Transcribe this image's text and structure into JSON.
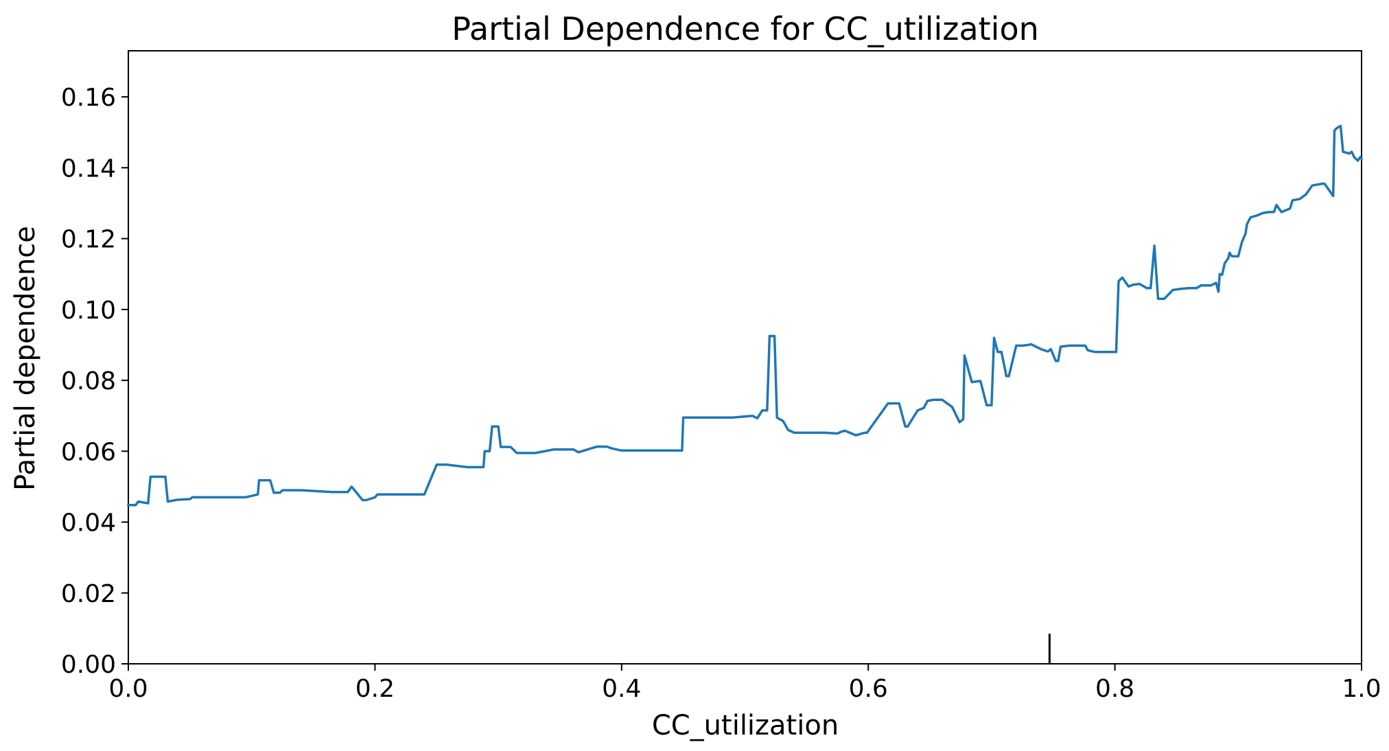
{
  "chart_data": {
    "type": "line",
    "title": "Partial Dependence for CC_utilization",
    "xlabel": "CC_utilization",
    "ylabel": "Partial dependence",
    "xlim": [
      0.0,
      1.0
    ],
    "ylim": [
      0.0,
      0.173
    ],
    "xticks": [
      0.0,
      0.2,
      0.4,
      0.6,
      0.8,
      1.0
    ],
    "xtick_labels": [
      "0.0",
      "0.2",
      "0.4",
      "0.6",
      "0.8",
      "1.0"
    ],
    "yticks": [
      0.0,
      0.02,
      0.04,
      0.06,
      0.08,
      0.1,
      0.12,
      0.14,
      0.16
    ],
    "ytick_labels": [
      "0.00",
      "0.02",
      "0.04",
      "0.06",
      "0.08",
      "0.10",
      "0.12",
      "0.14",
      "0.16"
    ],
    "grid": false,
    "line_color": "#1f77b4",
    "rug_x": [
      0.747
    ],
    "rug_height": 0.0085,
    "series": [
      {
        "x": [
          0.0,
          0.006,
          0.008,
          0.016,
          0.018,
          0.03,
          0.032,
          0.04,
          0.05,
          0.052,
          0.06,
          0.095,
          0.105,
          0.106,
          0.115,
          0.118,
          0.123,
          0.125,
          0.14,
          0.165,
          0.178,
          0.181,
          0.19,
          0.193,
          0.2,
          0.202,
          0.238,
          0.24,
          0.25,
          0.258,
          0.268,
          0.275,
          0.288,
          0.289,
          0.293,
          0.295,
          0.3,
          0.302,
          0.31,
          0.315,
          0.33,
          0.345,
          0.361,
          0.365,
          0.38,
          0.388,
          0.392,
          0.4,
          0.43,
          0.449,
          0.45,
          0.49,
          0.506,
          0.51,
          0.514,
          0.518,
          0.52,
          0.524,
          0.526,
          0.531,
          0.535,
          0.54,
          0.565,
          0.575,
          0.578,
          0.581,
          0.59,
          0.597,
          0.599,
          0.616,
          0.622,
          0.625,
          0.63,
          0.632,
          0.64,
          0.645,
          0.648,
          0.653,
          0.66,
          0.668,
          0.674,
          0.677,
          0.678,
          0.684,
          0.69,
          0.691,
          0.696,
          0.7,
          0.702,
          0.705,
          0.708,
          0.712,
          0.714,
          0.72,
          0.725,
          0.73,
          0.732,
          0.74,
          0.745,
          0.746,
          0.748,
          0.752,
          0.754,
          0.756,
          0.763,
          0.77,
          0.776,
          0.778,
          0.784,
          0.79,
          0.8,
          0.801,
          0.803,
          0.806,
          0.811,
          0.815,
          0.82,
          0.826,
          0.829,
          0.832,
          0.835,
          0.84,
          0.847,
          0.853,
          0.86,
          0.866,
          0.87,
          0.873,
          0.878,
          0.882,
          0.884,
          0.885,
          0.887,
          0.889,
          0.892,
          0.893,
          0.895,
          0.9,
          0.903,
          0.906,
          0.907,
          0.91,
          0.915,
          0.92,
          0.925,
          0.929,
          0.931,
          0.935,
          0.94,
          0.942,
          0.944,
          0.95,
          0.955,
          0.96,
          0.968,
          0.97,
          0.977,
          0.978,
          0.98,
          0.983,
          0.985,
          0.99,
          0.992,
          0.994,
          0.997,
          0.999,
          1.0
        ],
        "y": [
          0.0448,
          0.0448,
          0.0458,
          0.0453,
          0.0528,
          0.0528,
          0.0458,
          0.0463,
          0.0465,
          0.047,
          0.047,
          0.047,
          0.0478,
          0.0518,
          0.0518,
          0.0483,
          0.0483,
          0.049,
          0.049,
          0.0485,
          0.0485,
          0.05,
          0.0462,
          0.0462,
          0.047,
          0.0478,
          0.0478,
          0.0478,
          0.0562,
          0.0562,
          0.0558,
          0.0555,
          0.0555,
          0.06,
          0.06,
          0.067,
          0.067,
          0.0612,
          0.0612,
          0.0595,
          0.0595,
          0.0605,
          0.0605,
          0.0597,
          0.0613,
          0.0613,
          0.0608,
          0.0602,
          0.0602,
          0.0602,
          0.0695,
          0.0695,
          0.07,
          0.0693,
          0.0715,
          0.0715,
          0.0925,
          0.0925,
          0.0695,
          0.0685,
          0.066,
          0.0652,
          0.0652,
          0.065,
          0.0655,
          0.0658,
          0.0645,
          0.0652,
          0.0652,
          0.0735,
          0.0735,
          0.0735,
          0.067,
          0.067,
          0.0715,
          0.0722,
          0.0742,
          0.0745,
          0.0745,
          0.0725,
          0.0682,
          0.069,
          0.087,
          0.0795,
          0.0798,
          0.0798,
          0.073,
          0.073,
          0.092,
          0.088,
          0.088,
          0.0812,
          0.0812,
          0.0898,
          0.0898,
          0.09,
          0.0902,
          0.0888,
          0.0882,
          0.0882,
          0.0888,
          0.0855,
          0.0855,
          0.0895,
          0.0898,
          0.0898,
          0.0898,
          0.0885,
          0.088,
          0.088,
          0.088,
          0.088,
          0.108,
          0.109,
          0.1065,
          0.107,
          0.1072,
          0.106,
          0.106,
          0.118,
          0.103,
          0.103,
          0.1055,
          0.1058,
          0.106,
          0.106,
          0.1068,
          0.1068,
          0.1068,
          0.1075,
          0.105,
          0.11,
          0.1098,
          0.113,
          0.1145,
          0.116,
          0.115,
          0.115,
          0.119,
          0.1215,
          0.124,
          0.126,
          0.1265,
          0.1272,
          0.1275,
          0.1275,
          0.1295,
          0.1275,
          0.1282,
          0.1285,
          0.1308,
          0.1312,
          0.1325,
          0.135,
          0.1355,
          0.1355,
          0.132,
          0.1505,
          0.1512,
          0.1518,
          0.1445,
          0.144,
          0.1445,
          0.143,
          0.142,
          0.143,
          0.1425
        ]
      }
    ]
  }
}
